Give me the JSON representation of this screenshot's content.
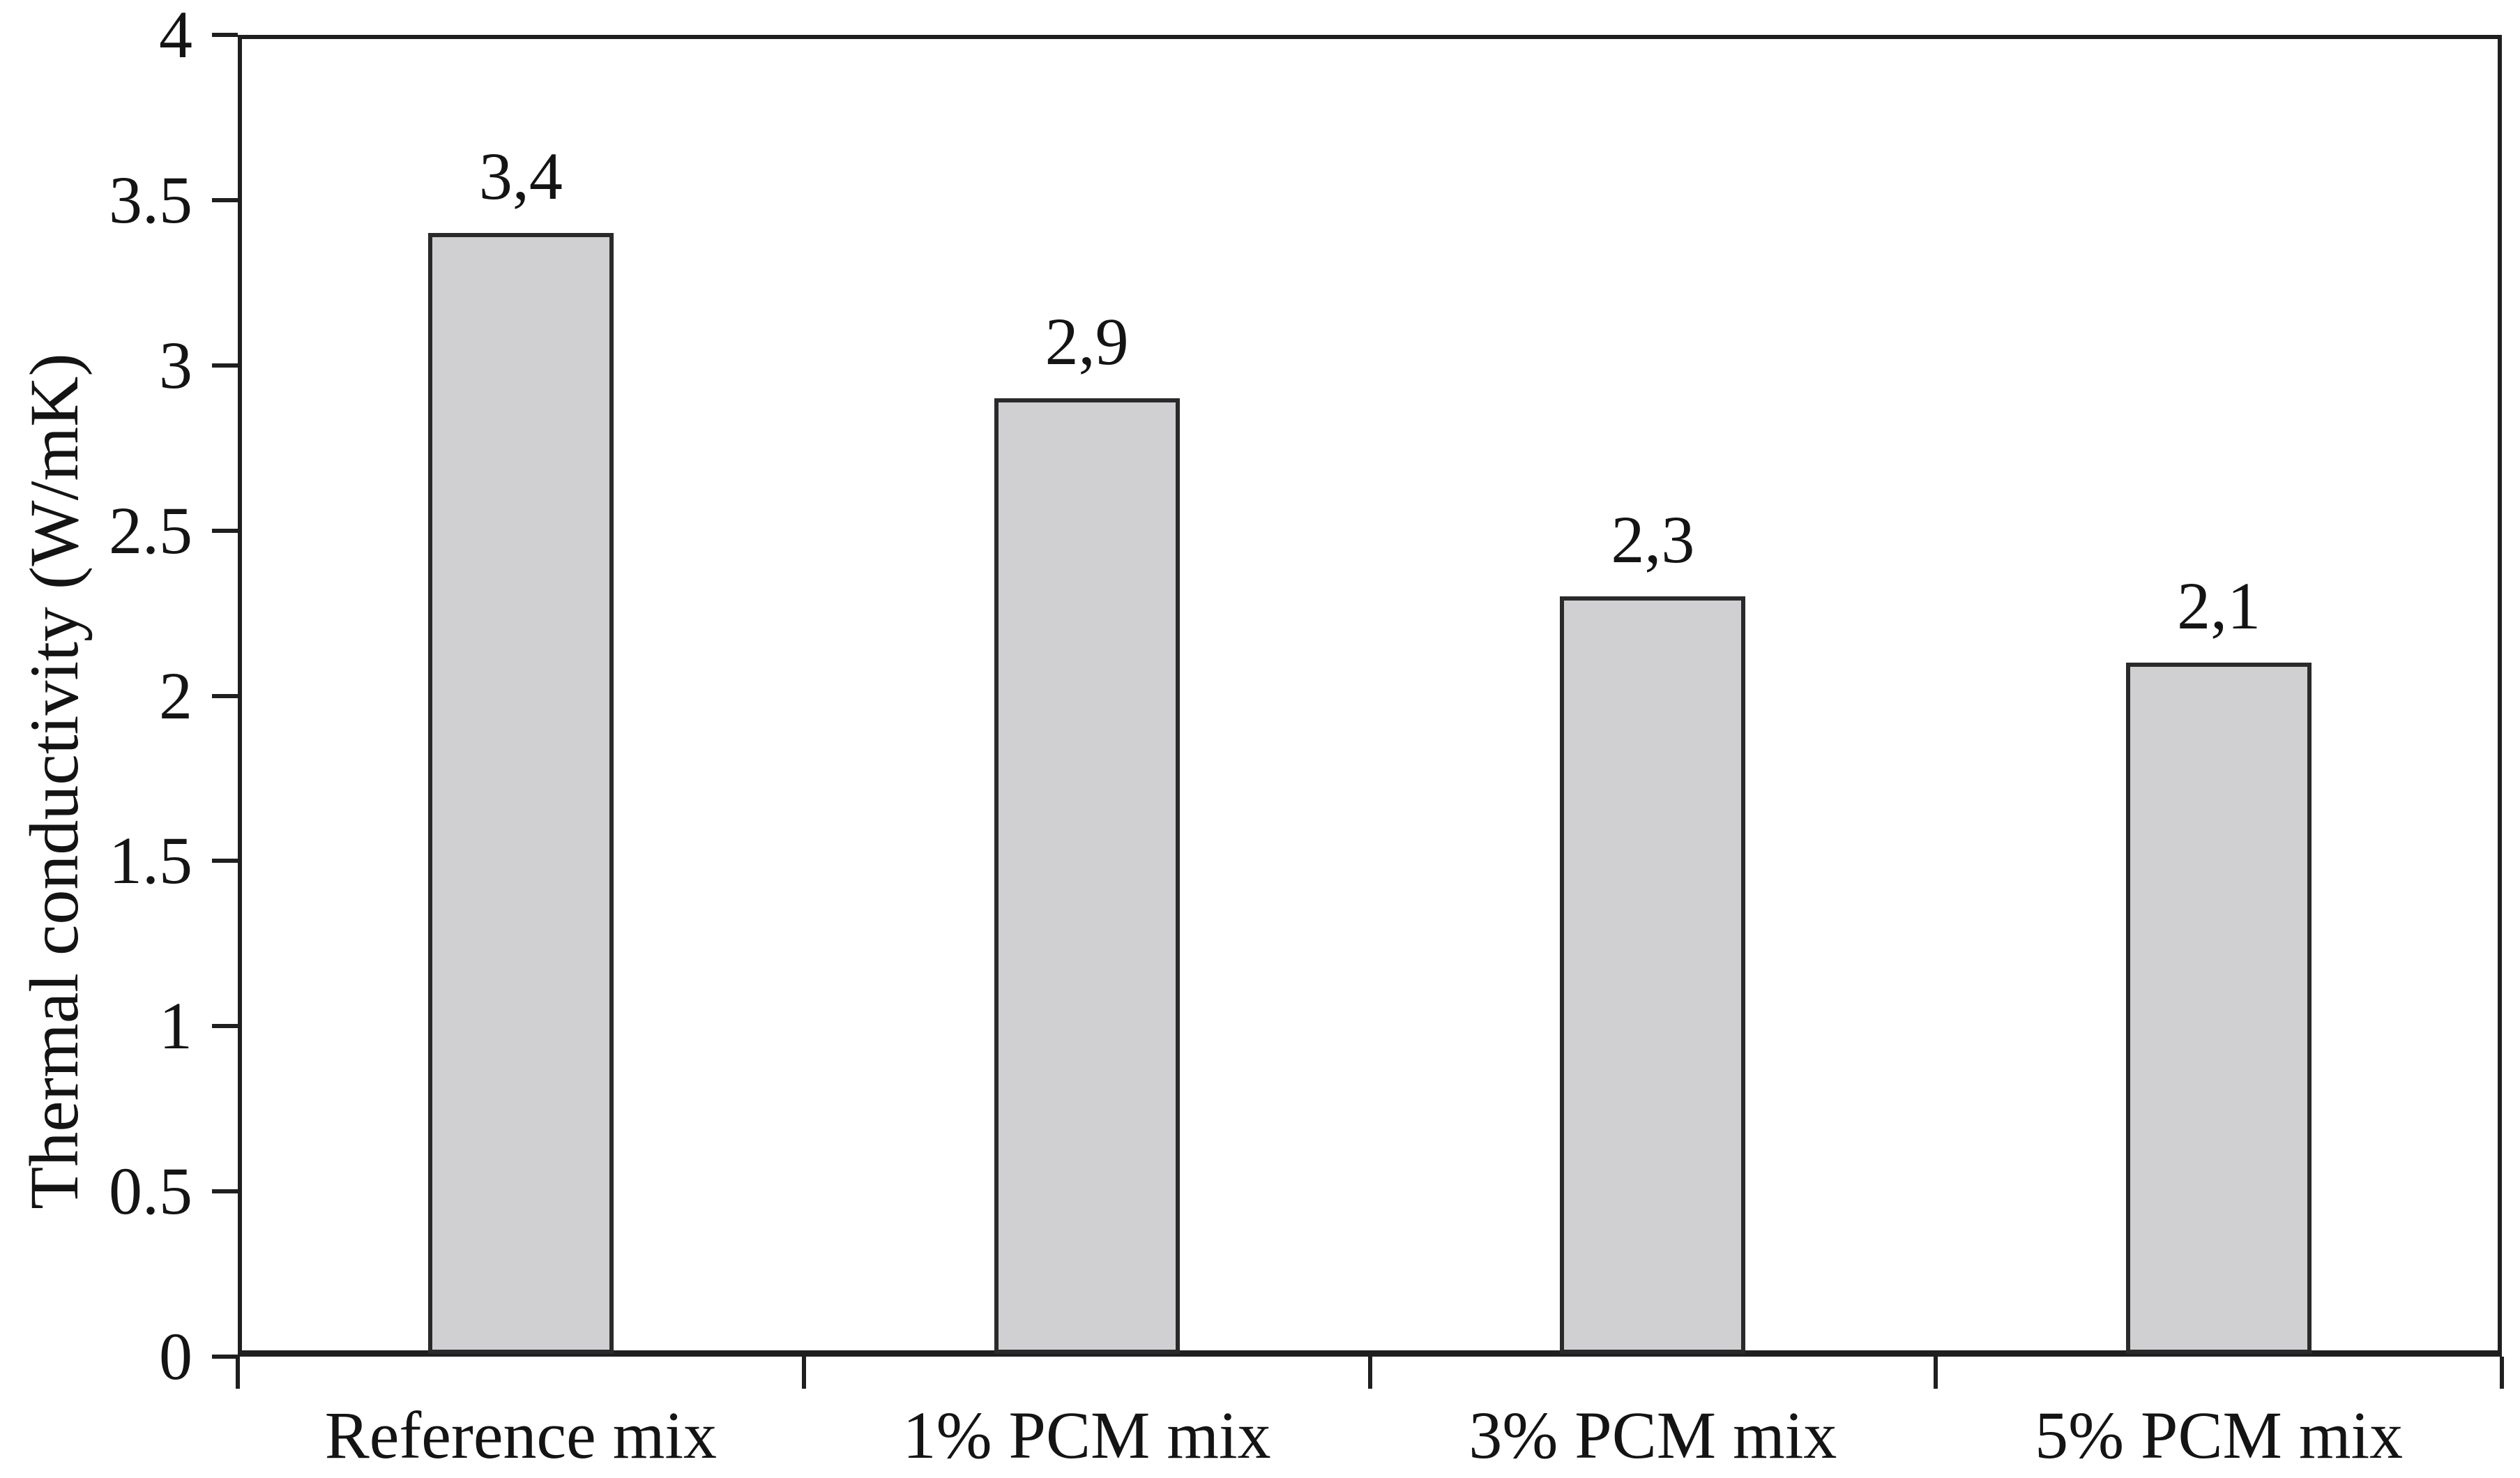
{
  "chart_data": {
    "type": "bar",
    "title": "",
    "xlabel": "",
    "ylabel": "Thermal conductivity (W/mK)",
    "categories": [
      "Reference mix",
      "1% PCM mix",
      "3% PCM mix",
      "5% PCM mix"
    ],
    "values": [
      3.4,
      2.9,
      2.3,
      2.1
    ],
    "bar_value_labels": [
      "3,4",
      "2,9",
      "2,3",
      "2,1"
    ],
    "ylim": [
      0,
      4
    ],
    "ytick_step": 0.5,
    "ytick_labels": [
      "0",
      "0.5",
      "1",
      "1.5",
      "2",
      "2.5",
      "3",
      "3.5",
      "4"
    ],
    "grid": false,
    "legend": "none",
    "colors": {
      "bar_fill": "#d0d0d3",
      "bar_border": "#2a2a2a",
      "axis_line": "#1f1f1f",
      "text": "#141414",
      "background": "#ffffff"
    }
  }
}
